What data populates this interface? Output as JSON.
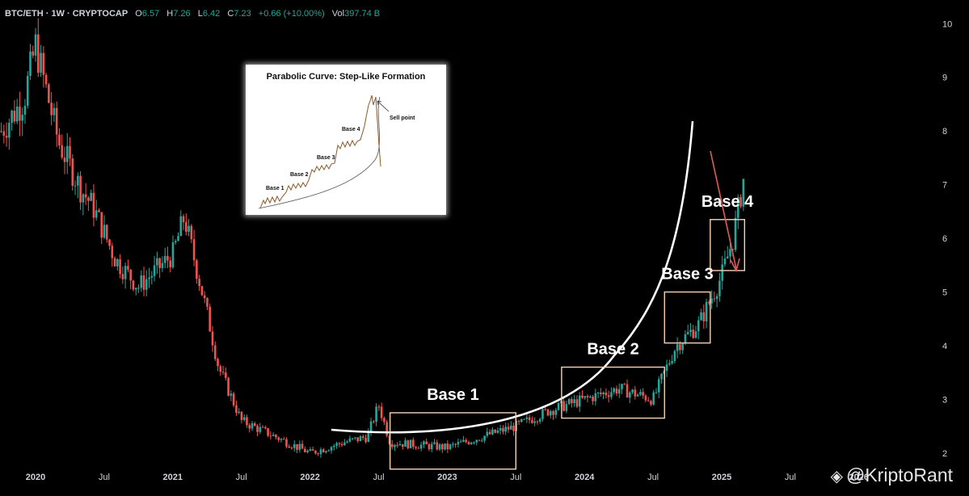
{
  "header": {
    "symbol": "BTC/ETH · 1W · CRYPTOCAP",
    "open_label": "O",
    "open": "6.57",
    "high_label": "H",
    "high": "7.26",
    "low_label": "L",
    "low": "6.42",
    "close_label": "C",
    "close": "7.23",
    "change": "+0.66 (+10.00%)",
    "vol_label": "Vol",
    "vol": "397.74 B",
    "up_color": "#26a69a",
    "down_color": "#ef5350"
  },
  "watermark": "@KriptoRant",
  "chart_data": {
    "type": "candlestick",
    "title": "",
    "ylim": [
      1.5,
      10.2
    ],
    "y_ticks": [
      2,
      3,
      4,
      5,
      6,
      7,
      8,
      9,
      10
    ],
    "x_ticks": [
      "2020",
      "Jul",
      "2021",
      "Jul",
      "2022",
      "Jul",
      "2023",
      "Jul",
      "2024",
      "Jul",
      "2025",
      "Jul",
      "2026"
    ],
    "series_anchor_points": [
      {
        "x": "2019-10",
        "y": 8.0
      },
      {
        "x": "2019-12",
        "y": 8.6
      },
      {
        "x": "2020-01",
        "y": 9.6
      },
      {
        "x": "2020-03",
        "y": 7.8
      },
      {
        "x": "2020-05",
        "y": 6.9
      },
      {
        "x": "2020-06",
        "y": 6.6
      },
      {
        "x": "2020-08",
        "y": 5.6
      },
      {
        "x": "2020-10",
        "y": 5.1
      },
      {
        "x": "2021-01",
        "y": 5.7
      },
      {
        "x": "2021-02",
        "y": 6.4
      },
      {
        "x": "2021-04",
        "y": 4.6
      },
      {
        "x": "2021-05",
        "y": 3.6
      },
      {
        "x": "2021-07",
        "y": 2.6
      },
      {
        "x": "2021-10",
        "y": 2.3
      },
      {
        "x": "2022-01",
        "y": 2.0
      },
      {
        "x": "2022-04",
        "y": 2.2
      },
      {
        "x": "2022-06",
        "y": 2.3
      },
      {
        "x": "2022-07",
        "y": 2.9
      },
      {
        "x": "2022-08",
        "y": 2.2
      },
      {
        "x": "2023-01",
        "y": 2.1
      },
      {
        "x": "2023-07",
        "y": 2.5
      },
      {
        "x": "2023-10",
        "y": 2.8
      },
      {
        "x": "2024-01",
        "y": 3.0
      },
      {
        "x": "2024-04",
        "y": 3.2
      },
      {
        "x": "2024-07",
        "y": 3.0
      },
      {
        "x": "2024-09",
        "y": 4.0
      },
      {
        "x": "2024-11",
        "y": 4.4
      },
      {
        "x": "2025-01",
        "y": 5.3
      },
      {
        "x": "2025-02",
        "y": 6.0
      },
      {
        "x": "2025-03",
        "y": 7.23
      }
    ],
    "annotations": {
      "bases": [
        {
          "label": "Base 1",
          "x0": "2022-08",
          "x1": "2023-07",
          "y0": 1.7,
          "y1": 2.75
        },
        {
          "label": "Base 2",
          "x0": "2023-11",
          "x1": "2024-08",
          "y0": 2.65,
          "y1": 3.6
        },
        {
          "label": "Base 3",
          "x0": "2024-08",
          "x1": "2024-12",
          "y0": 4.05,
          "y1": 5.0
        },
        {
          "label": "Base 4",
          "x0": "2024-12",
          "x1": "2025-03",
          "y0": 5.4,
          "y1": 6.35
        }
      ],
      "arrow_color": "#e25b5b",
      "curve_color": "#ffffff",
      "box_color": "#f4d3b8"
    }
  },
  "inset": {
    "title": "Parabolic Curve: Step-Like Formation",
    "labels": [
      "Base 1",
      "Base 2",
      "Base 3",
      "Base 4"
    ],
    "sell_label": "Sell point",
    "line_color": "#8a5a2b"
  }
}
